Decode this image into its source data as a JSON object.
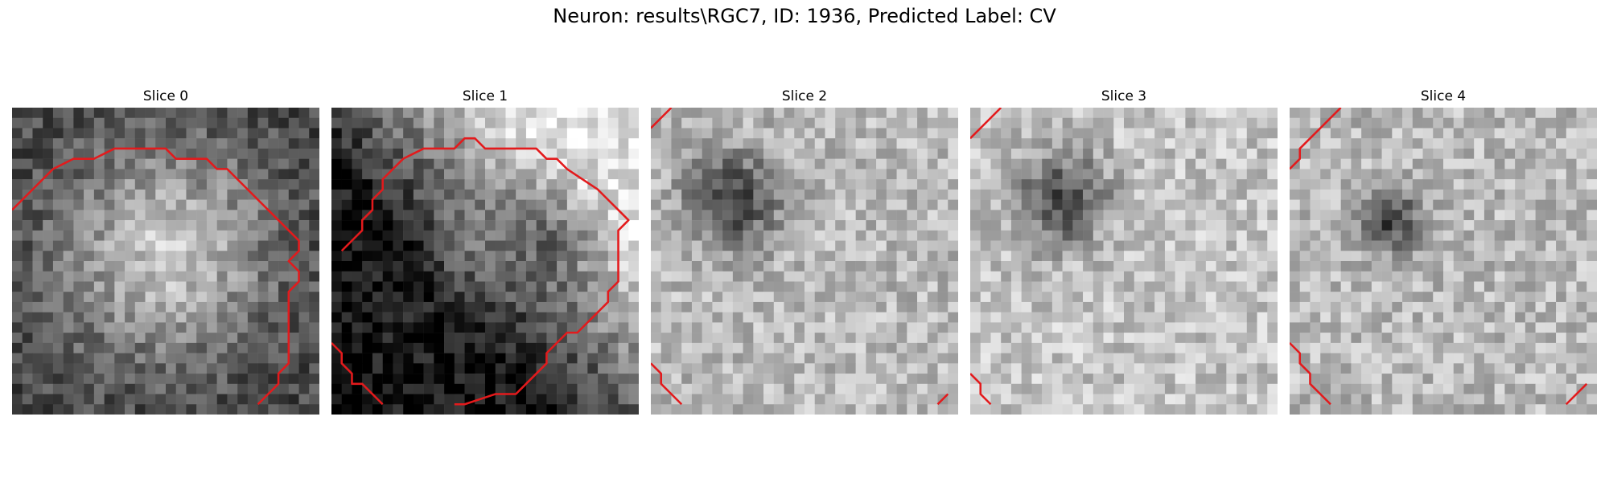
{
  "figure": {
    "title": "Neuron: results\\RGC7, ID: 1936, Predicted Label: CV"
  },
  "slices": [
    {
      "title": "Slice 0",
      "kind": "ring-bright",
      "seed": 11
    },
    {
      "title": "Slice 1",
      "kind": "gradient",
      "seed": 23
    },
    {
      "title": "Slice 2",
      "kind": "dark-blob",
      "seed": 37
    },
    {
      "title": "Slice 3",
      "kind": "dark-blob-light",
      "seed": 51
    },
    {
      "title": "Slice 4",
      "kind": "small-dark",
      "seed": 67
    }
  ],
  "contour_color": "#e31a1c"
}
